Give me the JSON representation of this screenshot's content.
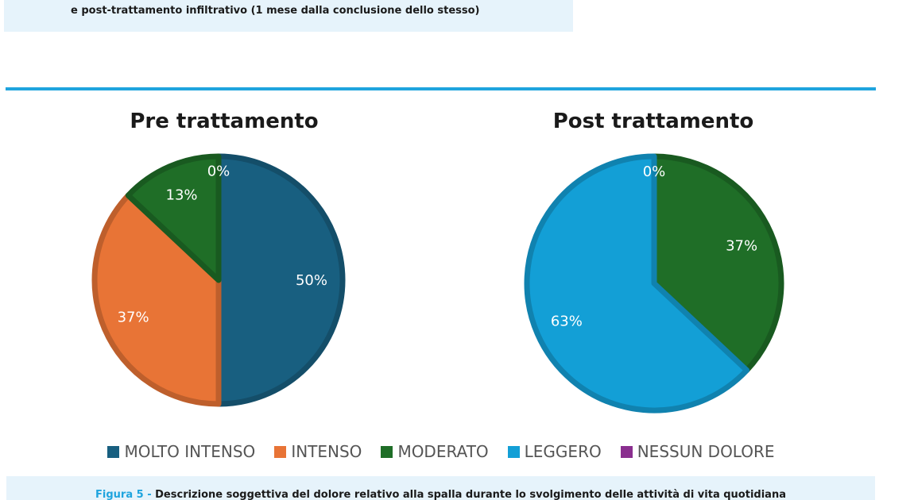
{
  "header": {
    "caption": "e post-trattamento infiltrativo (1 mese dalla conclusione dello stesso)"
  },
  "legend": [
    {
      "label": "MOLTO INTENSO",
      "color": "#185f80"
    },
    {
      "label": "INTENSO",
      "color": "#e87436"
    },
    {
      "label": "MODERATO",
      "color": "#1f6e27"
    },
    {
      "label": "LEGGERO",
      "color": "#139fd6"
    },
    {
      "label": "NESSUN DOLORE",
      "color": "#8a2f8f"
    }
  ],
  "footer": {
    "figure_label": "Figura 5 - ",
    "figure_text": "Descrizione soggettiva del dolore relativo alla spalla durante lo svolgimento delle attività di vita quotidiana"
  },
  "chart_data": [
    {
      "type": "pie",
      "title": "Pre trattamento",
      "categories": [
        "MOLTO INTENSO",
        "INTENSO",
        "MODERATO",
        "LEGGERO",
        "NESSUN DOLORE"
      ],
      "values": [
        50,
        37,
        13,
        0,
        0
      ],
      "labels": [
        "50%",
        "37%",
        "13%",
        "",
        "0%"
      ],
      "legend_position": "bottom"
    },
    {
      "type": "pie",
      "title": "Post trattamento",
      "categories": [
        "MOLTO INTENSO",
        "INTENSO",
        "MODERATO",
        "LEGGERO",
        "NESSUN DOLORE"
      ],
      "values": [
        0,
        0,
        37,
        63,
        0
      ],
      "labels": [
        "",
        "",
        "37%",
        "63%",
        "0%"
      ],
      "legend_position": "bottom"
    }
  ]
}
